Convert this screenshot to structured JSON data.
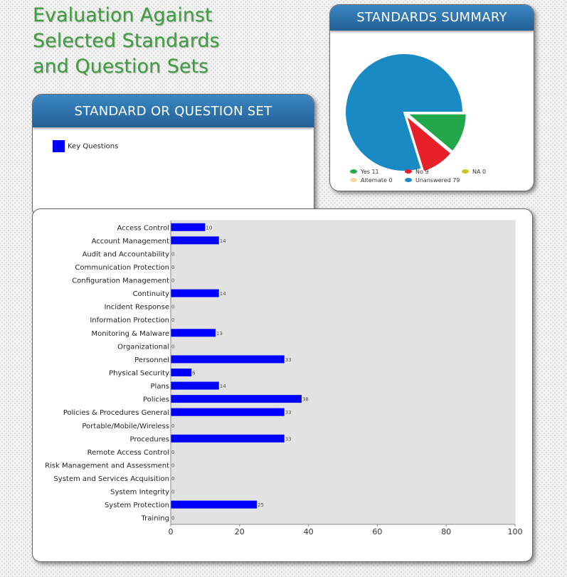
{
  "page_title": [
    "Evaluation Against",
    "Selected Standards",
    "and Question Sets"
  ],
  "summary_panel": {
    "title": "STANDARDS SUMMARY"
  },
  "standard_panel": {
    "title": "STANDARD OR QUESTION SET",
    "legend_label": "Key Questions",
    "legend_color": "#0000ff"
  },
  "chart_data": [
    {
      "type": "pie",
      "slices": [
        {
          "label": "Yes",
          "value": 11,
          "color": "#22a84a",
          "legend_text": "Yes 11"
        },
        {
          "label": "No",
          "value": 9,
          "color": "#e8202a",
          "legend_text": "No 9"
        },
        {
          "label": "NA",
          "value": 0,
          "color": "#c8c820",
          "legend_text": "NA 0"
        },
        {
          "label": "Alternate",
          "value": 0,
          "color": "#f6d8a0",
          "legend_text": "Alternate 0"
        },
        {
          "label": "Unanswered",
          "value": 79,
          "color": "#1a8ac4",
          "legend_text": "Unanswered 79"
        }
      ]
    },
    {
      "type": "bar",
      "orientation": "horizontal",
      "categories": [
        "Access Control",
        "Account Management",
        "Audit and Accountability",
        "Communication Protection",
        "Configuration Management",
        "Continuity",
        "Incident Response",
        "Information Protection",
        "Monitoring & Malware",
        "Organizational",
        "Personnel",
        "Physical Security",
        "Plans",
        "Policies",
        "Policies & Procedures General",
        "Portable/Mobile/Wireless",
        "Procedures",
        "Remote Access Control",
        "Risk Management and Assessment",
        "System and Services Acquisition",
        "System Integrity",
        "System Protection",
        "Training"
      ],
      "series": [
        {
          "name": "Key Questions",
          "color": "#0000ff",
          "values": [
            10,
            14,
            0,
            0,
            0,
            14,
            0,
            0,
            13,
            0,
            33,
            6,
            14,
            38,
            33,
            0,
            33,
            0,
            0,
            0,
            0,
            25,
            0
          ]
        }
      ],
      "xlim": [
        0,
        100
      ],
      "xticks": [
        0,
        20,
        40,
        60,
        80,
        100
      ],
      "grid": false
    }
  ]
}
